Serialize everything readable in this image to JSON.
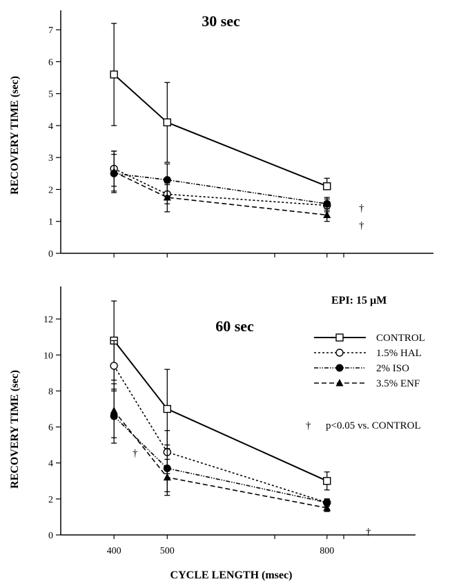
{
  "chart_data": [
    {
      "type": "line",
      "title": "30 sec",
      "ylabel": "RECOVERY TIME  (sec)",
      "xlabel": "",
      "x": [
        400,
        500,
        800
      ],
      "xlim": [
        300,
        1000
      ],
      "ylim": [
        0,
        7.5
      ],
      "yticks": [
        "0",
        "1",
        "2",
        "3",
        "4",
        "5",
        "6",
        "7"
      ],
      "xtick_labels": [],
      "series": [
        {
          "name": "CONTROL",
          "marker": "open-square",
          "dash": "solid",
          "values": [
            5.6,
            4.1,
            2.1
          ],
          "err_up": [
            1.6,
            1.25,
            0.25
          ],
          "err_down": [
            1.6,
            1.25,
            0.0
          ]
        },
        {
          "name": "1.5% HAL",
          "marker": "open-circle",
          "dash": "dotted",
          "values": [
            2.65,
            1.85,
            1.5
          ],
          "err_up": [
            0.55,
            0.3,
            0.2
          ],
          "err_down": [
            0.55,
            0.3,
            0.2
          ]
        },
        {
          "name": "2% ISO",
          "marker": "filled-circle",
          "dash": "dash-dot-dot",
          "values": [
            2.5,
            2.3,
            1.55
          ],
          "err_up": [
            0.7,
            0.5,
            0.2
          ],
          "err_down": [
            0.6,
            0.5,
            0.2
          ]
        },
        {
          "name": "3.5% ENF",
          "marker": "filled-triangle",
          "dash": "dashed",
          "values": [
            2.55,
            1.75,
            1.2
          ],
          "err_up": [
            0.55,
            0.45,
            0.2
          ],
          "err_down": [
            0.6,
            0.45,
            0.2
          ]
        }
      ],
      "annotations": [
        "†",
        "†"
      ]
    },
    {
      "type": "line",
      "title": "60 sec",
      "ylabel": "RECOVERY TIME  (sec)",
      "xlabel": "CYCLE LENGTH  (msec)",
      "x": [
        400,
        500,
        800
      ],
      "xlim": [
        300,
        1000
      ],
      "ylim": [
        0,
        14
      ],
      "yticks": [
        "0",
        "2",
        "4",
        "6",
        "8",
        "10",
        "12"
      ],
      "xtick_labels": [
        "400",
        "500",
        "800"
      ],
      "series": [
        {
          "name": "CONTROL",
          "marker": "open-square",
          "dash": "solid",
          "values": [
            10.8,
            7.0,
            3.0
          ],
          "err_up": [
            2.2,
            2.2,
            0.5
          ],
          "err_down": [
            2.2,
            2.2,
            0.5
          ]
        },
        {
          "name": "1.5% HAL",
          "marker": "open-circle",
          "dash": "dotted",
          "values": [
            9.4,
            4.6,
            1.8
          ],
          "err_up": [
            1.4,
            1.2,
            0.2
          ],
          "err_down": [
            1.4,
            1.2,
            0.2
          ]
        },
        {
          "name": "2% ISO",
          "marker": "filled-circle",
          "dash": "dash-dot-dot",
          "values": [
            6.6,
            3.7,
            1.8
          ],
          "err_up": [
            1.5,
            1.3,
            0.2
          ],
          "err_down": [
            1.5,
            1.3,
            0.2
          ]
        },
        {
          "name": "3.5% ENF",
          "marker": "filled-triangle",
          "dash": "dashed",
          "values": [
            6.9,
            3.2,
            1.5
          ],
          "err_up": [
            1.5,
            1.0,
            0.2
          ],
          "err_down": [
            1.5,
            1.0,
            0.2
          ]
        }
      ],
      "annotations": [
        "†",
        "†"
      ]
    }
  ],
  "legend": {
    "heading": "EPI: 15 µM",
    "items": [
      "CONTROL",
      "1.5% HAL",
      "2% ISO",
      "3.5% ENF"
    ],
    "placement": "right"
  },
  "footnote": {
    "symbol": "†",
    "text": "p<0.05   vs. CONTROL"
  }
}
